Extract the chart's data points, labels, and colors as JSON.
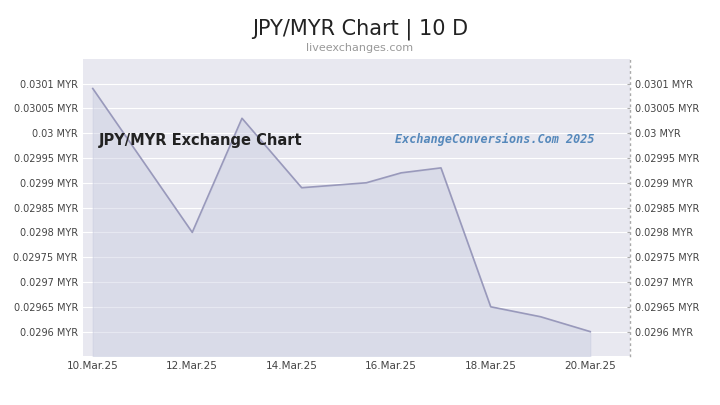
{
  "title": "JPY/MYR Chart | 10 D",
  "subtitle": "liveexchanges.com",
  "watermark": "ExchangeConversions.Com 2025",
  "inner_label": "JPY/MYR Exchange Chart",
  "x_labels": [
    "10.Mar.25",
    "12.Mar.25",
    "14.Mar.25",
    "16.Mar.25",
    "18.Mar.25",
    "20.Mar.25"
  ],
  "x_positions": [
    0,
    2,
    4,
    6,
    8,
    10
  ],
  "y_ticks": [
    0.0296,
    0.02965,
    0.0297,
    0.02975,
    0.0298,
    0.02985,
    0.0299,
    0.02995,
    0.03,
    0.03005,
    0.0301
  ],
  "y_tick_labels": [
    "0.0296 MYR",
    "0.02965 MYR",
    "0.0297 MYR",
    "0.02975 MYR",
    "0.0298 MYR",
    "0.02985 MYR",
    "0.0299 MYR",
    "0.02995 MYR",
    "0.03 MYR",
    "0.03005 MYR",
    "0.0301 MYR"
  ],
  "data_x": [
    0,
    2,
    3,
    4.2,
    5.5,
    6.2,
    7.0,
    8.0,
    9.0,
    10.0
  ],
  "data_y": [
    0.03009,
    0.0298,
    0.03003,
    0.02989,
    0.0299,
    0.02992,
    0.02993,
    0.02965,
    0.02963,
    0.0296
  ],
  "line_color": "#9999bb",
  "fill_color": "#c8cce0",
  "bg_color": "#ffffff",
  "plot_bg": "#e8e8f0",
  "title_color": "#222222",
  "subtitle_color": "#999999",
  "watermark_color": "#5588bb",
  "label_color": "#222222",
  "tick_color": "#444444",
  "ylim": [
    0.02955,
    0.03015
  ],
  "xlim": [
    -0.2,
    10.8
  ],
  "grid_color": "#ffffff"
}
